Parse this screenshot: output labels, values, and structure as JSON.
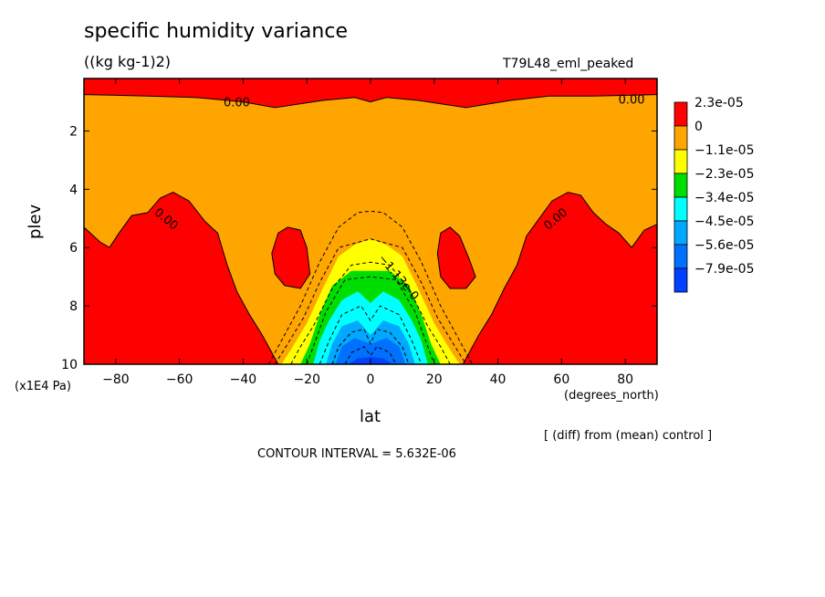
{
  "title": "specific humidity variance",
  "units": "((kg kg-1)2)",
  "run_name": "T79L48_eml_peaked",
  "footer": {
    "contour_interval": "CONTOUR INTERVAL = 5.632E-06",
    "diff_note": "[ (diff) from (mean) control ]"
  },
  "chart_data": {
    "type": "heatmap",
    "subtype": "filled-contour",
    "xlabel": "lat",
    "xunits": "(degrees_north)",
    "ylabel": "plev",
    "yunits": "(x1E4 Pa)",
    "xlim": [
      -90,
      90
    ],
    "ylim": [
      10,
      0.2
    ],
    "y_scale": "linear, inverted (pressure increases downward)",
    "x_ticks": [
      -80,
      -60,
      -40,
      -20,
      0,
      20,
      40,
      60,
      80
    ],
    "y_ticks": [
      2,
      4,
      6,
      8,
      10
    ],
    "legend": {
      "placement": "right",
      "levels": [
        "2.3e-05",
        "0",
        "-1.1e-05",
        "-2.3e-05",
        "-3.4e-05",
        "-4.5e-05",
        "-5.6e-05",
        "-7.9e-05"
      ],
      "colors": [
        "#ff0000",
        "#ffa500",
        "#ffff00",
        "#00dd00",
        "#00ffff",
        "#00a8ff",
        "#0070ff",
        "#0040ff"
      ]
    },
    "contour_labels": [
      {
        "text": "0.00",
        "lat": -42,
        "plev": 1.0
      },
      {
        "text": "0.00",
        "lat": 82,
        "plev": 0.9
      },
      {
        "text": "0.00",
        "lat": -64,
        "plev": 5.0
      },
      {
        "text": "0.00",
        "lat": 58,
        "plev": 5.0
      },
      {
        "text": "-1.13e-0",
        "lat": 9,
        "plev": 7.0
      }
    ],
    "regions": [
      {
        "desc": "positive (red) band near model top",
        "plev": [
          0.2,
          0.8
        ],
        "level": "2.3e-05"
      },
      {
        "desc": "southern high-latitude positive lobe",
        "lat": [
          -90,
          -29
        ],
        "plev_top": 4.1,
        "level": "2.3e-05"
      },
      {
        "desc": "northern high-latitude positive lobe",
        "lat": [
          29,
          90
        ],
        "plev_top": 4.1,
        "level": "2.3e-05"
      },
      {
        "desc": "subtropical positive islands",
        "lat": [
          -29,
          -17,
          20,
          33
        ],
        "plev": [
          5.3,
          7.4
        ],
        "level": "2.3e-05"
      },
      {
        "desc": "equatorial negative minimum",
        "lat": [
          -25,
          25
        ],
        "plev_top": 6.0,
        "min_level": "-7.9e-05",
        "min_plev": 10
      }
    ]
  }
}
